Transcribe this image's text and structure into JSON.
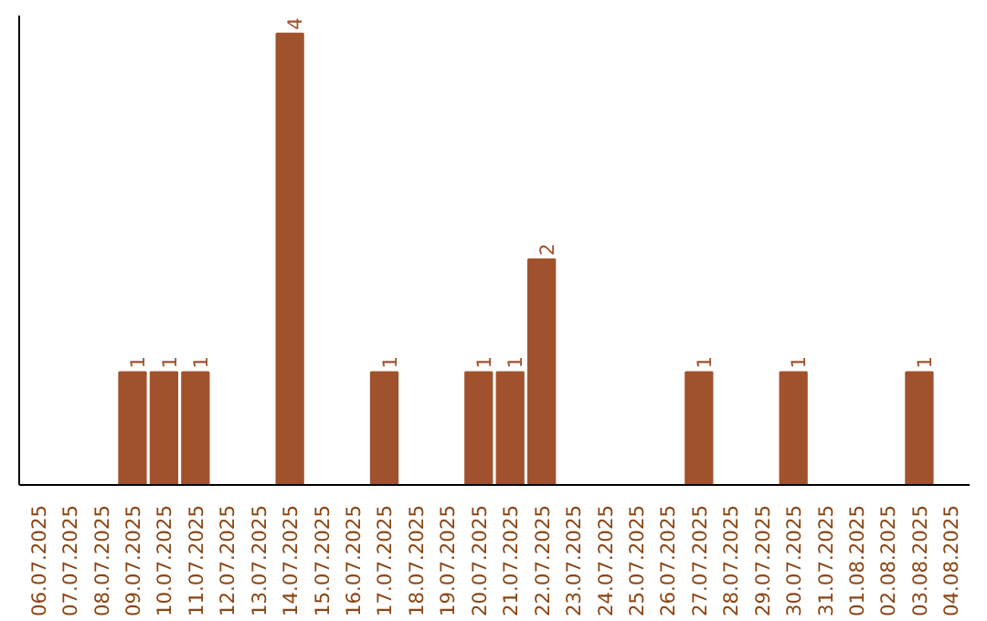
{
  "chart_data": {
    "type": "bar",
    "categories": [
      "06.07.2025",
      "07.07.2025",
      "08.07.2025",
      "09.07.2025",
      "10.07.2025",
      "11.07.2025",
      "12.07.2025",
      "13.07.2025",
      "14.07.2025",
      "15.07.2025",
      "16.07.2025",
      "17.07.2025",
      "18.07.2025",
      "19.07.2025",
      "20.07.2025",
      "21.07.2025",
      "22.07.2025",
      "23.07.2025",
      "24.07.2025",
      "25.07.2025",
      "26.07.2025",
      "27.07.2025",
      "28.07.2025",
      "29.07.2025",
      "30.07.2025",
      "31.07.2025",
      "01.08.2025",
      "02.08.2025",
      "03.08.2025",
      "04.08.2025"
    ],
    "values": [
      0,
      0,
      0,
      1,
      1,
      1,
      0,
      0,
      4,
      0,
      0,
      1,
      0,
      0,
      1,
      1,
      2,
      0,
      0,
      0,
      0,
      1,
      0,
      0,
      1,
      0,
      0,
      0,
      1,
      0
    ],
    "value_labels": [
      null,
      null,
      null,
      "1",
      "1",
      "1",
      null,
      null,
      "4",
      null,
      null,
      "1",
      null,
      null,
      "1",
      "1",
      "2",
      null,
      null,
      null,
      null,
      "1",
      null,
      null,
      "1",
      null,
      null,
      null,
      "1",
      null
    ],
    "color": "#a0522d"
  }
}
